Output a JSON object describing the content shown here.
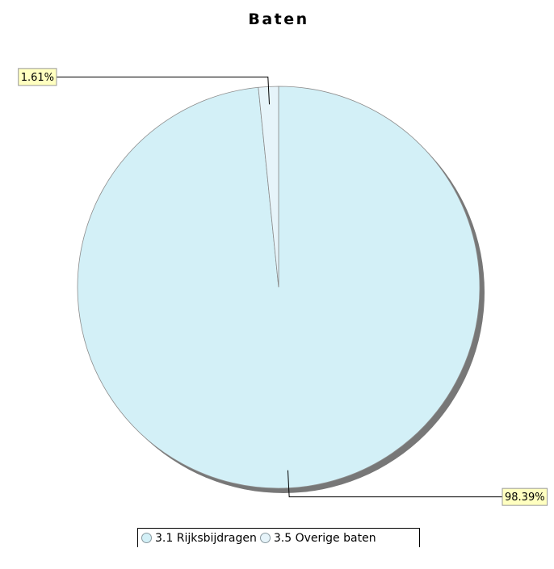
{
  "chart_data": {
    "type": "pie",
    "title": "Baten",
    "slices": [
      {
        "label": "3.1 Rijksbijdragen",
        "value": 98.39,
        "display": "98.39%",
        "color": "#d3f0f7"
      },
      {
        "label": "3.5 Overige baten",
        "value": 1.61,
        "display": "1.61%",
        "color": "#e6f4fa"
      }
    ],
    "legend_position": "bottom",
    "callout_color": "#ffffc0",
    "shadow_color": "#777777"
  }
}
